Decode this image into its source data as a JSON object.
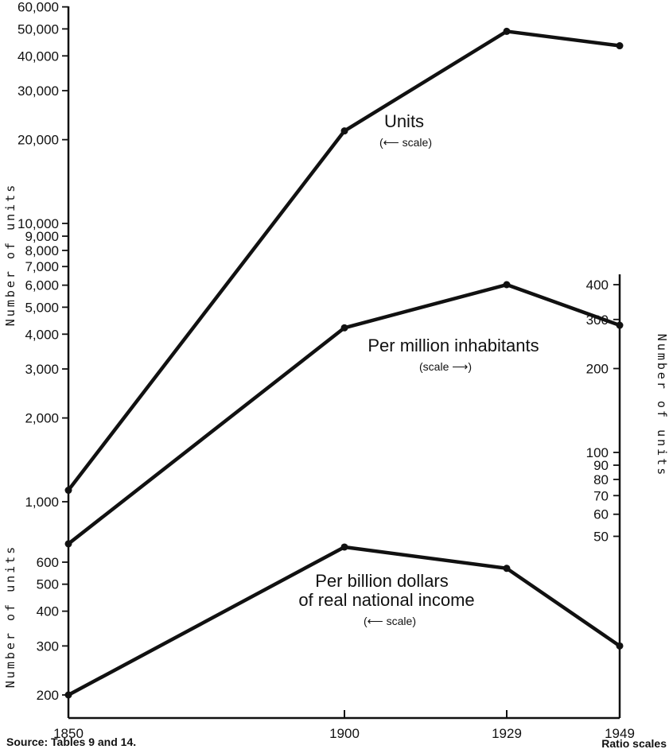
{
  "chart_data": {
    "type": "line",
    "x": [
      1850,
      1900,
      1929,
      1949
    ],
    "x_tick_labels": [
      "1850",
      "1900",
      "1929",
      "1949"
    ],
    "log_scale": true,
    "grid": false,
    "series": [
      {
        "name": "Units",
        "scale_note": "(⟵ scale)",
        "axis": "left",
        "values": [
          1100,
          21500,
          49000,
          43500
        ]
      },
      {
        "name": "Per million inhabitants",
        "scale_note": "(scale ⟶)",
        "axis": "right",
        "values": [
          47,
          280,
          400,
          286
        ]
      },
      {
        "name_line1": "Per billion dollars",
        "name_line2": "of real national income",
        "scale_note": "(⟵ scale)",
        "axis": "left-lower",
        "values": [
          200,
          680,
          570,
          300
        ]
      }
    ],
    "axes": {
      "left_upper": {
        "label": "Number of units",
        "ylim": [
          1000,
          60000
        ],
        "ticks": [
          {
            "v": 1000,
            "label": "1,000"
          },
          {
            "v": 2000,
            "label": "2,000"
          },
          {
            "v": 3000,
            "label": "3,000"
          },
          {
            "v": 4000,
            "label": "4,000"
          },
          {
            "v": 5000,
            "label": "5,000"
          },
          {
            "v": 6000,
            "label": "6,000"
          },
          {
            "v": 7000,
            "label": "7,000"
          },
          {
            "v": 8000,
            "label": "8,000"
          },
          {
            "v": 9000,
            "label": "9,000"
          },
          {
            "v": 10000,
            "label": "10,000"
          },
          {
            "v": 20000,
            "label": "20,000"
          },
          {
            "v": 30000,
            "label": "30,000"
          },
          {
            "v": 40000,
            "label": "40,000"
          },
          {
            "v": 50000,
            "label": "50,000"
          },
          {
            "v": 60000,
            "label": "60,000"
          }
        ]
      },
      "left_lower": {
        "label": "Number of units",
        "ylim": [
          200,
          600
        ],
        "ticks": [
          {
            "v": 200,
            "label": "200"
          },
          {
            "v": 300,
            "label": "300"
          },
          {
            "v": 400,
            "label": "400"
          },
          {
            "v": 500,
            "label": "500"
          },
          {
            "v": 600,
            "label": "600"
          }
        ]
      },
      "right": {
        "label": "Number of units",
        "ylim": [
          50,
          400
        ],
        "ticks": [
          {
            "v": 50,
            "label": "50"
          },
          {
            "v": 60,
            "label": "60"
          },
          {
            "v": 70,
            "label": "70"
          },
          {
            "v": 80,
            "label": "80"
          },
          {
            "v": 90,
            "label": "90"
          },
          {
            "v": 100,
            "label": "100"
          },
          {
            "v": 200,
            "label": "200"
          },
          {
            "v": 300,
            "label": "300"
          },
          {
            "v": 400,
            "label": "400"
          }
        ]
      }
    },
    "source": "Source: Tables 9 and 14.",
    "scale_type_note": "Ratio scales"
  }
}
